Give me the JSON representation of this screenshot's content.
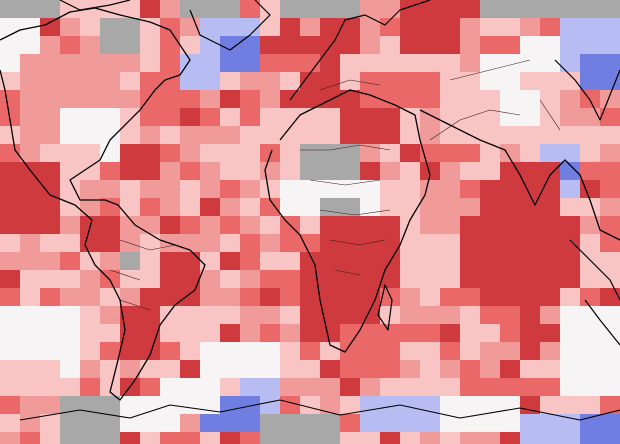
{
  "map": {
    "palette": {
      "warmest": "#cf3a3e",
      "warm": "#ea6868",
      "moderate": "#f09a9a",
      "mild": "#f8c4c4",
      "neutral": "#f7f4f6",
      "cool": "#b7bcf3",
      "coolest": "#6f7ee0",
      "no_data": "#a8a8a8"
    },
    "background_category": "warm",
    "coastline_color": "#000000",
    "border_color": "#3a1a1a"
  }
}
